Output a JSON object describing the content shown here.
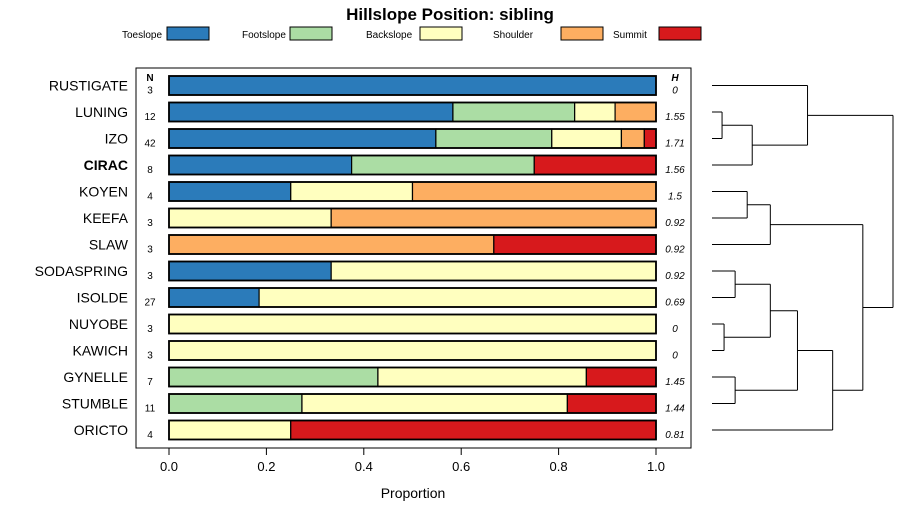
{
  "chart_data": {
    "type": "bar",
    "title": "Hillslope Position: sibling",
    "xlabel": "Proportion",
    "xlim": [
      0,
      1
    ],
    "xticks": [
      "0.0",
      "0.2",
      "0.4",
      "0.6",
      "0.8",
      "1.0"
    ],
    "n_header": "N",
    "h_header": "H",
    "legend_position": "top",
    "grid": false,
    "stacked": true,
    "highlight_category": "CIRAC",
    "series": [
      {
        "name": "Toeslope",
        "color": "#2b7bba",
        "values": [
          1.0,
          0.583,
          0.548,
          0.375,
          0.25,
          0,
          0,
          0.333,
          0.185,
          0,
          0,
          0,
          0,
          0
        ]
      },
      {
        "name": "Footslope",
        "color": "#abdda4",
        "values": [
          0,
          0.25,
          0.238,
          0.375,
          0,
          0,
          0,
          0,
          0,
          0,
          0,
          0.429,
          0.273,
          0
        ]
      },
      {
        "name": "Backslope",
        "color": "#ffffbf",
        "values": [
          0,
          0.083,
          0.143,
          0,
          0.25,
          0.333,
          0,
          0.667,
          0.815,
          1.0,
          1.0,
          0.428,
          0.545,
          0.25
        ]
      },
      {
        "name": "Shoulder",
        "color": "#fdae61",
        "values": [
          0,
          0.084,
          0.047,
          0,
          0.5,
          0.667,
          0.667,
          0,
          0,
          0,
          0,
          0,
          0,
          0
        ]
      },
      {
        "name": "Summit",
        "color": "#d7191c",
        "values": [
          0,
          0,
          0.024,
          0.25,
          0,
          0,
          0.333,
          0,
          0,
          0,
          0,
          0.143,
          0.182,
          0.75
        ]
      }
    ],
    "categories": [
      "RUSTIGATE",
      "LUNING",
      "IZO",
      "CIRAC",
      "KOYEN",
      "KEEFA",
      "SLAW",
      "SODASPRING",
      "ISOLDE",
      "NUYOBE",
      "KAWICH",
      "GYNELLE",
      "STUMBLE",
      "ORICTO"
    ],
    "n": [
      "3",
      "12",
      "42",
      "8",
      "4",
      "3",
      "3",
      "3",
      "27",
      "3",
      "3",
      "7",
      "11",
      "4"
    ],
    "h": [
      "0",
      "1.55",
      "1.71",
      "1.56",
      "1.5",
      "0.92",
      "0.92",
      "0.92",
      "0.69",
      "0",
      "0",
      "1.45",
      "1.44",
      "0.81"
    ],
    "dendrogram": {
      "leaf_order": [
        "RUSTIGATE",
        "LUNING",
        "IZO",
        "CIRAC",
        "KOYEN",
        "KEEFA",
        "SLAW",
        "SODASPRING",
        "ISOLDE",
        "NUYOBE",
        "KAWICH",
        "GYNELLE",
        "STUMBLE",
        "ORICTO"
      ],
      "merges": [
        {
          "a": "LUNING",
          "b": "IZO",
          "height": 0.1
        },
        {
          "a": "LUNING+IZO",
          "b": "CIRAC",
          "height": 0.4
        },
        {
          "a": "RUSTIGATE",
          "b": "LUNING+IZO+CIRAC",
          "height": 0.95
        },
        {
          "a": "KOYEN",
          "b": "KEEFA",
          "height": 0.35
        },
        {
          "a": "KOYEN+KEEFA",
          "b": "SLAW",
          "height": 0.58
        },
        {
          "a": "SODASPRING",
          "b": "ISOLDE",
          "height": 0.23
        },
        {
          "a": "NUYOBE",
          "b": "KAWICH",
          "height": 0.12
        },
        {
          "a": "SODASPRING+ISOLDE",
          "b": "NUYOBE+KAWICH",
          "height": 0.58
        },
        {
          "a": "GYNELLE",
          "b": "STUMBLE",
          "height": 0.23
        },
        {
          "a": "SODASPRING+ISOLDE+NUYOBE+KAWICH",
          "b": "GYNELLE+STUMBLE",
          "height": 0.85
        },
        {
          "a": "SODASPRING+ISOLDE+NUYOBE+KAWICH+GYNELLE+STUMBLE",
          "b": "ORICTO",
          "height": 1.2
        },
        {
          "a": "KOYEN+KEEFA+SLAW",
          "b": "SODASPRING+ISOLDE+NUYOBE+KAWICH+GYNELLE+STUMBLE+ORICTO",
          "height": 1.5
        },
        {
          "a": "RUSTIGATE+LUNING+IZO+CIRAC",
          "b": "KOYEN+KEEFA+SLAW+SODASPRING+ISOLDE+NUYOBE+KAWICH+GYNELLE+STUMBLE+ORICTO",
          "height": 1.8
        }
      ]
    }
  }
}
